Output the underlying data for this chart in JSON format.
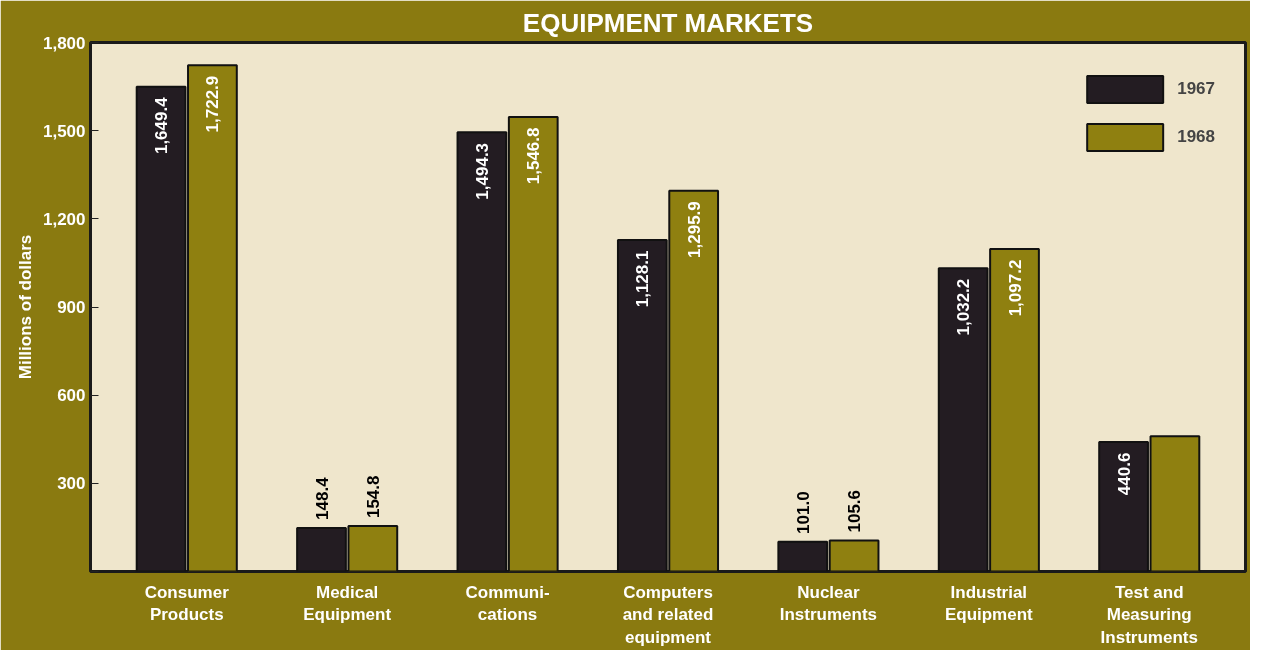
{
  "chart_data": {
    "type": "bar",
    "title": "EQUIPMENT MARKETS",
    "ylabel": "Millions of dollars",
    "categories": [
      "Consumer\nProducts",
      "Medical\nEquipment",
      "Communi-\ncations",
      "Computers\nand related\nequipment",
      "Nuclear\nInstruments",
      "Industrial\nEquipment",
      "Test and\nMeasuring\nInstruments"
    ],
    "series": [
      {
        "name": "1967",
        "color": "#231c22",
        "values": [
          1649.4,
          148.4,
          1494.3,
          1128.1,
          101.0,
          1032.2,
          440.6
        ],
        "value_labels": [
          "1,649.4",
          "148.4",
          "1,494.3",
          "1,128.1",
          "101.0",
          "1,032.2",
          "440.6"
        ]
      },
      {
        "name": "1968",
        "color": "#8f8010",
        "values": [
          1722.9,
          154.8,
          1546.8,
          1295.9,
          105.6,
          1097.2,
          460
        ],
        "value_labels": [
          "1,722.9",
          "154.8",
          "1,546.8",
          "1,295.9",
          "105.6",
          "1,097.2",
          null
        ]
      }
    ],
    "ylim": [
      0,
      1800
    ],
    "yticks": [
      {
        "value": 0,
        "label": null
      },
      300,
      600,
      900,
      {
        "value": 1200,
        "label": "1,200"
      },
      {
        "value": 1500,
        "label": "1,500"
      },
      {
        "value": 1800,
        "label": "1,800"
      }
    ],
    "grid": false,
    "legend": "top right"
  }
}
